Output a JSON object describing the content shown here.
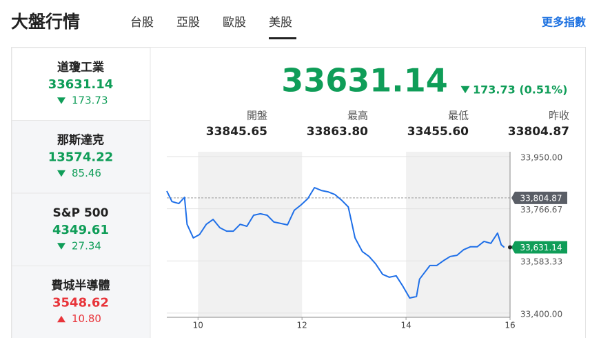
{
  "header": {
    "title": "大盤行情",
    "tabs": [
      "台股",
      "亞股",
      "歐股",
      "美股"
    ],
    "active_tab": 3,
    "more_link": "更多指數"
  },
  "indices": [
    {
      "name": "道瓊工業",
      "value": "33631.14",
      "change": "173.73",
      "direction": "down",
      "color": "#0f9d58",
      "selected": true
    },
    {
      "name": "那斯達克",
      "value": "13574.22",
      "change": "85.46",
      "direction": "down",
      "color": "#0f9d58",
      "selected": false
    },
    {
      "name": "S&P 500",
      "value": "4349.61",
      "change": "27.34",
      "direction": "down",
      "color": "#0f9d58",
      "selected": false
    },
    {
      "name": "費城半導體",
      "value": "3548.62",
      "change": "10.80",
      "direction": "up",
      "color": "#e8343a",
      "selected": false
    }
  ],
  "quote": {
    "value": "33631.14",
    "change": "173.73 (0.51%)",
    "direction": "down",
    "color": "#0f9d58"
  },
  "stats": [
    {
      "label": "開盤",
      "value": "33845.65"
    },
    {
      "label": "最高",
      "value": "33863.80"
    },
    {
      "label": "最低",
      "value": "33455.60"
    },
    {
      "label": "昨收",
      "value": "33804.87"
    }
  ],
  "chart_data": {
    "type": "line",
    "color": "#1e6fe8",
    "x": [
      9.4,
      9.5,
      9.63,
      9.74,
      9.79,
      9.91,
      10.03,
      10.16,
      10.29,
      10.42,
      10.55,
      10.68,
      10.81,
      10.94,
      11.07,
      11.2,
      11.33,
      11.46,
      11.59,
      11.72,
      11.85,
      11.98,
      12.11,
      12.24,
      12.37,
      12.5,
      12.63,
      12.76,
      12.89,
      13.02,
      13.16,
      13.29,
      13.42,
      13.55,
      13.68,
      13.81,
      13.94,
      14.07,
      14.2,
      14.26,
      14.33,
      14.46,
      14.59,
      14.72,
      14.85,
      14.98,
      15.11,
      15.24,
      15.37,
      15.5,
      15.63,
      15.76,
      15.83,
      15.89
    ],
    "values": [
      33829,
      33792,
      33785,
      33807,
      33712,
      33664,
      33676,
      33712,
      33729,
      33700,
      33688,
      33688,
      33712,
      33705,
      33744,
      33749,
      33744,
      33720,
      33715,
      33710,
      33761,
      33780,
      33802,
      33841,
      33831,
      33826,
      33817,
      33797,
      33773,
      33664,
      33616,
      33599,
      33572,
      33536,
      33526,
      33531,
      33494,
      33453,
      33458,
      33519,
      33536,
      33567,
      33567,
      33584,
      33599,
      33603,
      33623,
      33633,
      33633,
      33652,
      33645,
      33681,
      33640,
      33631
    ],
    "xlim": [
      9.4,
      16
    ],
    "xticks": [
      10,
      12,
      14,
      16
    ],
    "ylim": [
      33385,
      33967
    ],
    "yticks": [
      {
        "value": 33950,
        "label": "33,950.00"
      },
      {
        "value": 33766.67,
        "label": "33,766.67"
      },
      {
        "value": 33583.33,
        "label": "33,583.33"
      },
      {
        "value": 33400,
        "label": "33,400.00"
      }
    ],
    "reference_line": {
      "value": 33804.87,
      "label": "33,804.87"
    },
    "last_marker": {
      "value": 33631.14,
      "label": "33,631.14"
    },
    "grid": true
  }
}
